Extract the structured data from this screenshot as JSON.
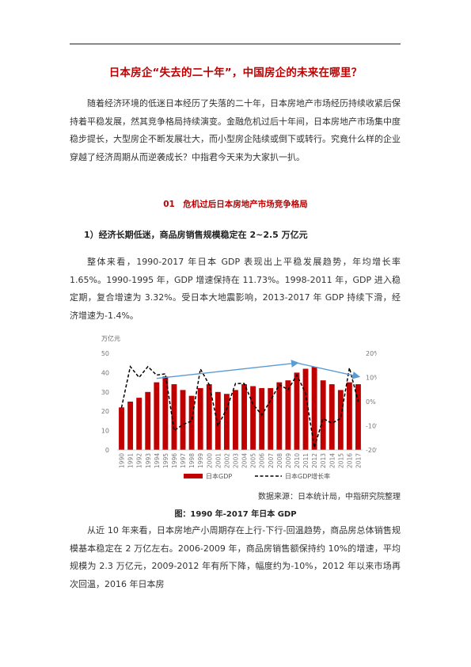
{
  "article": {
    "title": "日本房企“失去的二十年”，中国房企的未来在哪里？",
    "intro": "随着经济环境的低迷日本经历了失落的二十年，日本房地产市场经历持续收紧后保持着平稳发展，然其竞争格局持续演变。金融危机过后十年间，日本房地产市场集中度稳步提长，大型房企不断发展壮大，而小型房企陆续或倒下或转行。究竟什么样的企业穿越了经济周期从而逆袭成长？中指君今天来为大家扒一扒。",
    "section_title": "01　危机过后日本房地产市场竞争格局",
    "subheading": "1）经济长期低迷，商品房销售规模稳定在 2~2.5 万亿元",
    "para1": "整体来看，1990-2017 年日本 GDP 表现出上平稳发展趋势，年均增长率 1.65%。1990-1995 年，GDP 增速保持在 11.73%。1998-2011 年，GDP 进入稳定期，复合增速为 3.32%。受日本大地震影响，2013-2017 年 GDP 持续下滑，经济增速为-1.4%。",
    "source": "数据来源：日本统计局，中指研究院整理",
    "caption": "图：1990 年-2017 年日本 GDP",
    "para2": "从近 10 年来看，日本房地产小周期存在上行-下行-回温趋势，商品房总体销售规模基本稳定在 2 万亿左右。2006-2009 年，商品房销售额保持约 10%的增速，平均规模为 2.3 万亿元，2009-2012 年有所下降，幅度约为-10%，2012 年以来市场再次回温，2016 年日本房"
  },
  "chart_data": {
    "type": "bar",
    "unit_label": "万亿元",
    "categories": [
      "1990",
      "1991",
      "1992",
      "1993",
      "1994",
      "1995",
      "1996",
      "1997",
      "1998",
      "1999",
      "2000",
      "2001",
      "2002",
      "2003",
      "2004",
      "2005",
      "2006",
      "2007",
      "2008",
      "2009",
      "2010",
      "2011",
      "2012",
      "2013",
      "2014",
      "2015",
      "2016",
      "2017"
    ],
    "series": [
      {
        "name": "日本GDP",
        "type": "bar",
        "axis": "left",
        "color": "#c00000",
        "values": [
          22,
          25,
          27,
          30,
          35,
          38,
          34,
          31,
          28,
          32,
          34,
          30,
          29,
          31,
          34,
          33,
          32,
          32,
          35,
          36,
          40,
          42,
          43,
          36,
          34,
          31,
          35,
          34
        ]
      },
      {
        "name": "日本GDP增长率",
        "type": "line",
        "axis": "right",
        "color": "#000000",
        "dashed": true,
        "values": [
          -2.5,
          14.5,
          10,
          14.5,
          11,
          11.5,
          -12,
          -9.5,
          -8,
          13.5,
          7,
          -10,
          -3,
          7.5,
          7.5,
          -1,
          -5.5,
          0.5,
          7,
          5,
          11,
          3.5,
          -19,
          -7,
          -9,
          -7,
          14,
          0
        ]
      }
    ],
    "ylim_left": [
      0,
      50
    ],
    "yticks_left": [
      0,
      10,
      20,
      30,
      40,
      50
    ],
    "ylim_right": [
      -20,
      20
    ],
    "yticks_right": [
      "-20%",
      "-10%",
      "0%",
      "10%",
      "20%"
    ],
    "trend_arrows_color": "#5b9bd5",
    "trend_arrows": [
      {
        "from": [
          "1994",
          37
        ],
        "to": [
          "2010",
          45
        ]
      },
      {
        "from": [
          "2010",
          45
        ],
        "to": [
          "2017",
          38
        ]
      }
    ],
    "legend_position": "bottom",
    "grid": false
  }
}
